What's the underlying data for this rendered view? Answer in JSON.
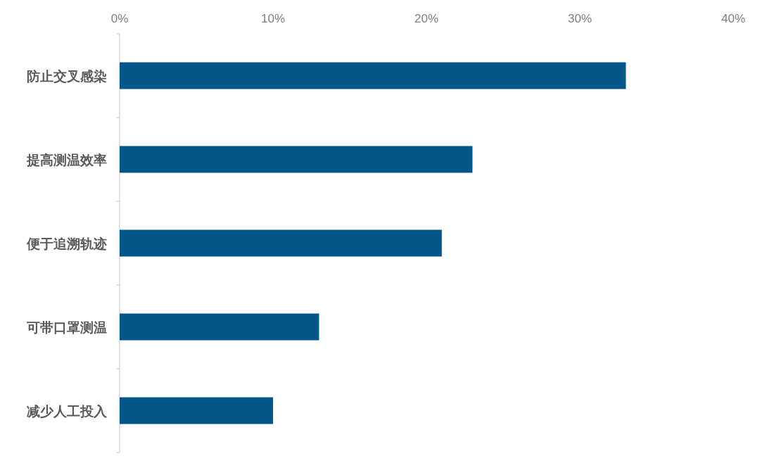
{
  "chart_data": {
    "type": "bar",
    "orientation": "horizontal",
    "categories": [
      "防止交叉感染",
      "提高测温效率",
      "便于追溯轨迹",
      "可带口罩测温",
      "减少人工投入"
    ],
    "values": [
      33,
      23,
      21,
      13,
      10
    ],
    "color": "#04568a",
    "xlim": [
      0,
      40
    ],
    "xticks": [
      {
        "value": 0,
        "label": "0%"
      },
      {
        "value": 10,
        "label": "10%"
      },
      {
        "value": 20,
        "label": "20%"
      },
      {
        "value": 30,
        "label": "30%"
      },
      {
        "value": 40,
        "label": "40%"
      }
    ],
    "grid": false
  }
}
